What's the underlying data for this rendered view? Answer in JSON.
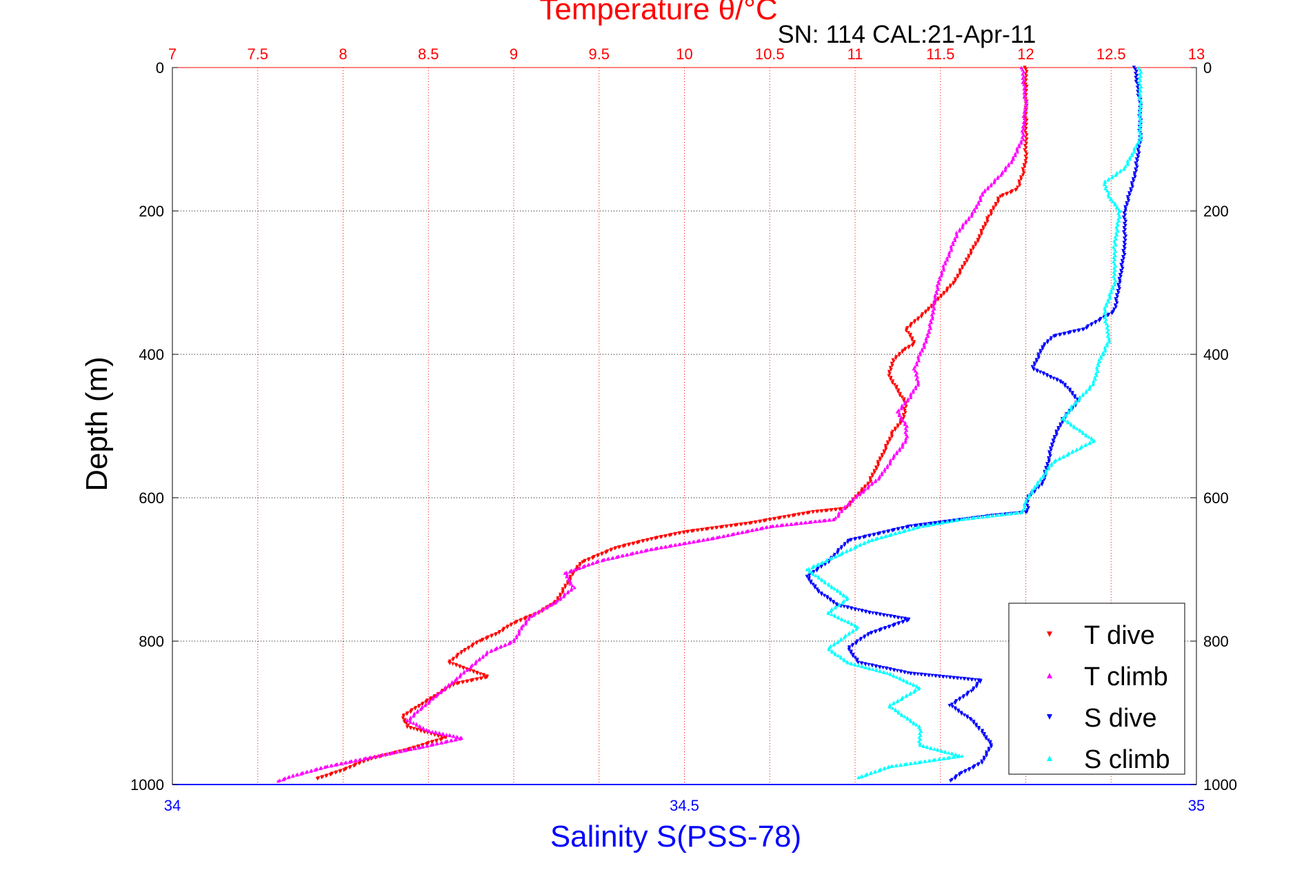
{
  "chart_data": {
    "type": "scatter",
    "title": "Temperature θ/°C",
    "subtitle": "SN: 114  CAL:21-Apr-11",
    "ylabel": "Depth (m)",
    "xlabel": "Salinity S(PSS-78)",
    "top_axis": {
      "label": "Temperature θ/°C",
      "range": [
        7,
        13
      ],
      "ticks": [
        "7",
        "7.5",
        "8",
        "8.5",
        "9",
        "9.5",
        "10",
        "10.5",
        "11",
        "11.5",
        "12",
        "12.5",
        "13"
      ],
      "color": "#ff0000"
    },
    "bottom_axis": {
      "label": "Salinity S(PSS-78)",
      "range": [
        34,
        35
      ],
      "ticks": [
        "34",
        "34.5",
        "35"
      ],
      "color": "#0000ff"
    },
    "y_axis": {
      "label": "Depth (m)",
      "range": [
        0,
        1000
      ],
      "reversed": true,
      "ticks": [
        "0",
        "200",
        "400",
        "600",
        "800",
        "1000"
      ]
    },
    "grid": true,
    "legend": {
      "position": "bottom-right",
      "entries": [
        "T dive",
        "T climb",
        "S dive",
        "S climb"
      ]
    },
    "series": [
      {
        "name": "T dive",
        "axis": "temperature",
        "color": "#ff0000",
        "marker": "triangle-down",
        "points": [
          [
            12.0,
            0
          ],
          [
            12.0,
            50
          ],
          [
            12.0,
            100
          ],
          [
            12.0,
            130
          ],
          [
            11.98,
            150
          ],
          [
            11.95,
            170
          ],
          [
            11.85,
            180
          ],
          [
            11.78,
            210
          ],
          [
            11.72,
            240
          ],
          [
            11.65,
            270
          ],
          [
            11.58,
            300
          ],
          [
            11.5,
            320
          ],
          [
            11.42,
            340
          ],
          [
            11.3,
            365
          ],
          [
            11.35,
            385
          ],
          [
            11.28,
            395
          ],
          [
            11.22,
            410
          ],
          [
            11.2,
            430
          ],
          [
            11.25,
            450
          ],
          [
            11.3,
            470
          ],
          [
            11.28,
            490
          ],
          [
            11.22,
            510
          ],
          [
            11.17,
            535
          ],
          [
            11.12,
            560
          ],
          [
            11.08,
            580
          ],
          [
            11.0,
            600
          ],
          [
            10.95,
            615
          ],
          [
            10.75,
            620
          ],
          [
            10.4,
            635
          ],
          [
            10.0,
            648
          ],
          [
            9.8,
            658
          ],
          [
            9.6,
            670
          ],
          [
            9.4,
            690
          ],
          [
            9.35,
            705
          ],
          [
            9.3,
            725
          ],
          [
            9.25,
            745
          ],
          [
            9.15,
            760
          ],
          [
            9.0,
            775
          ],
          [
            8.9,
            790
          ],
          [
            8.8,
            800
          ],
          [
            8.7,
            815
          ],
          [
            8.62,
            830
          ],
          [
            8.85,
            850
          ],
          [
            8.65,
            860
          ],
          [
            8.55,
            875
          ],
          [
            8.45,
            890
          ],
          [
            8.35,
            905
          ],
          [
            8.38,
            920
          ],
          [
            8.6,
            935
          ],
          [
            8.4,
            950
          ],
          [
            8.15,
            965
          ],
          [
            8.0,
            980
          ],
          [
            7.85,
            992
          ]
        ]
      },
      {
        "name": "T climb",
        "axis": "temperature",
        "color": "#ff00ff",
        "marker": "triangle-up",
        "points": [
          [
            11.98,
            0
          ],
          [
            12.0,
            50
          ],
          [
            11.98,
            100
          ],
          [
            11.92,
            130
          ],
          [
            11.85,
            150
          ],
          [
            11.75,
            175
          ],
          [
            11.7,
            200
          ],
          [
            11.6,
            230
          ],
          [
            11.55,
            260
          ],
          [
            11.5,
            290
          ],
          [
            11.47,
            320
          ],
          [
            11.45,
            350
          ],
          [
            11.42,
            380
          ],
          [
            11.38,
            400
          ],
          [
            11.35,
            420
          ],
          [
            11.37,
            440
          ],
          [
            11.32,
            460
          ],
          [
            11.25,
            480
          ],
          [
            11.3,
            500
          ],
          [
            11.3,
            520
          ],
          [
            11.22,
            545
          ],
          [
            11.15,
            570
          ],
          [
            11.05,
            590
          ],
          [
            10.95,
            610
          ],
          [
            10.88,
            630
          ],
          [
            10.5,
            640
          ],
          [
            10.2,
            655
          ],
          [
            9.8,
            672
          ],
          [
            9.5,
            688
          ],
          [
            9.3,
            705
          ],
          [
            9.35,
            725
          ],
          [
            9.25,
            745
          ],
          [
            9.1,
            765
          ],
          [
            9.05,
            780
          ],
          [
            9.0,
            800
          ],
          [
            8.85,
            815
          ],
          [
            8.75,
            835
          ],
          [
            8.65,
            855
          ],
          [
            8.55,
            875
          ],
          [
            8.45,
            895
          ],
          [
            8.38,
            910
          ],
          [
            8.5,
            925
          ],
          [
            8.7,
            935
          ],
          [
            8.45,
            948
          ],
          [
            8.2,
            960
          ],
          [
            7.9,
            975
          ],
          [
            7.7,
            988
          ],
          [
            7.62,
            995
          ]
        ]
      },
      {
        "name": "S dive",
        "axis": "salinity",
        "color": "#0000ff",
        "marker": "triangle-down",
        "points": [
          [
            34.94,
            0
          ],
          [
            34.945,
            50
          ],
          [
            34.945,
            100
          ],
          [
            34.94,
            150
          ],
          [
            34.93,
            200
          ],
          [
            34.93,
            250
          ],
          [
            34.925,
            300
          ],
          [
            34.92,
            340
          ],
          [
            34.89,
            365
          ],
          [
            34.86,
            375
          ],
          [
            34.85,
            390
          ],
          [
            34.84,
            420
          ],
          [
            34.87,
            440
          ],
          [
            34.885,
            465
          ],
          [
            34.87,
            490
          ],
          [
            34.86,
            520
          ],
          [
            34.855,
            550
          ],
          [
            34.85,
            580
          ],
          [
            34.835,
            600
          ],
          [
            34.835,
            620
          ],
          [
            34.8,
            625
          ],
          [
            34.72,
            640
          ],
          [
            34.66,
            660
          ],
          [
            34.64,
            690
          ],
          [
            34.62,
            710
          ],
          [
            34.63,
            730
          ],
          [
            34.65,
            750
          ],
          [
            34.68,
            760
          ],
          [
            34.72,
            770
          ],
          [
            34.68,
            790
          ],
          [
            34.66,
            810
          ],
          [
            34.67,
            830
          ],
          [
            34.72,
            845
          ],
          [
            34.79,
            855
          ],
          [
            34.78,
            870
          ],
          [
            34.76,
            890
          ],
          [
            34.78,
            910
          ],
          [
            34.79,
            925
          ],
          [
            34.8,
            945
          ],
          [
            34.79,
            970
          ],
          [
            34.77,
            985
          ],
          [
            34.76,
            995
          ]
        ]
      },
      {
        "name": "S climb",
        "axis": "salinity",
        "color": "#00ffff",
        "marker": "triangle-up",
        "points": [
          [
            34.945,
            0
          ],
          [
            34.945,
            50
          ],
          [
            34.945,
            100
          ],
          [
            34.93,
            140
          ],
          [
            34.91,
            160
          ],
          [
            34.915,
            180
          ],
          [
            34.925,
            200
          ],
          [
            34.92,
            250
          ],
          [
            34.92,
            300
          ],
          [
            34.91,
            340
          ],
          [
            34.915,
            380
          ],
          [
            34.905,
            410
          ],
          [
            34.9,
            440
          ],
          [
            34.88,
            470
          ],
          [
            34.87,
            490
          ],
          [
            34.9,
            520
          ],
          [
            34.86,
            550
          ],
          [
            34.845,
            580
          ],
          [
            34.835,
            600
          ],
          [
            34.83,
            620
          ],
          [
            34.77,
            630
          ],
          [
            34.73,
            640
          ],
          [
            34.68,
            660
          ],
          [
            34.65,
            680
          ],
          [
            34.62,
            700
          ],
          [
            34.64,
            720
          ],
          [
            34.66,
            740
          ],
          [
            34.64,
            760
          ],
          [
            34.67,
            780
          ],
          [
            34.65,
            800
          ],
          [
            34.64,
            810
          ],
          [
            34.66,
            830
          ],
          [
            34.7,
            845
          ],
          [
            34.73,
            865
          ],
          [
            34.7,
            890
          ],
          [
            34.73,
            920
          ],
          [
            34.73,
            945
          ],
          [
            34.77,
            960
          ],
          [
            34.7,
            975
          ],
          [
            34.67,
            990
          ]
        ]
      }
    ]
  }
}
